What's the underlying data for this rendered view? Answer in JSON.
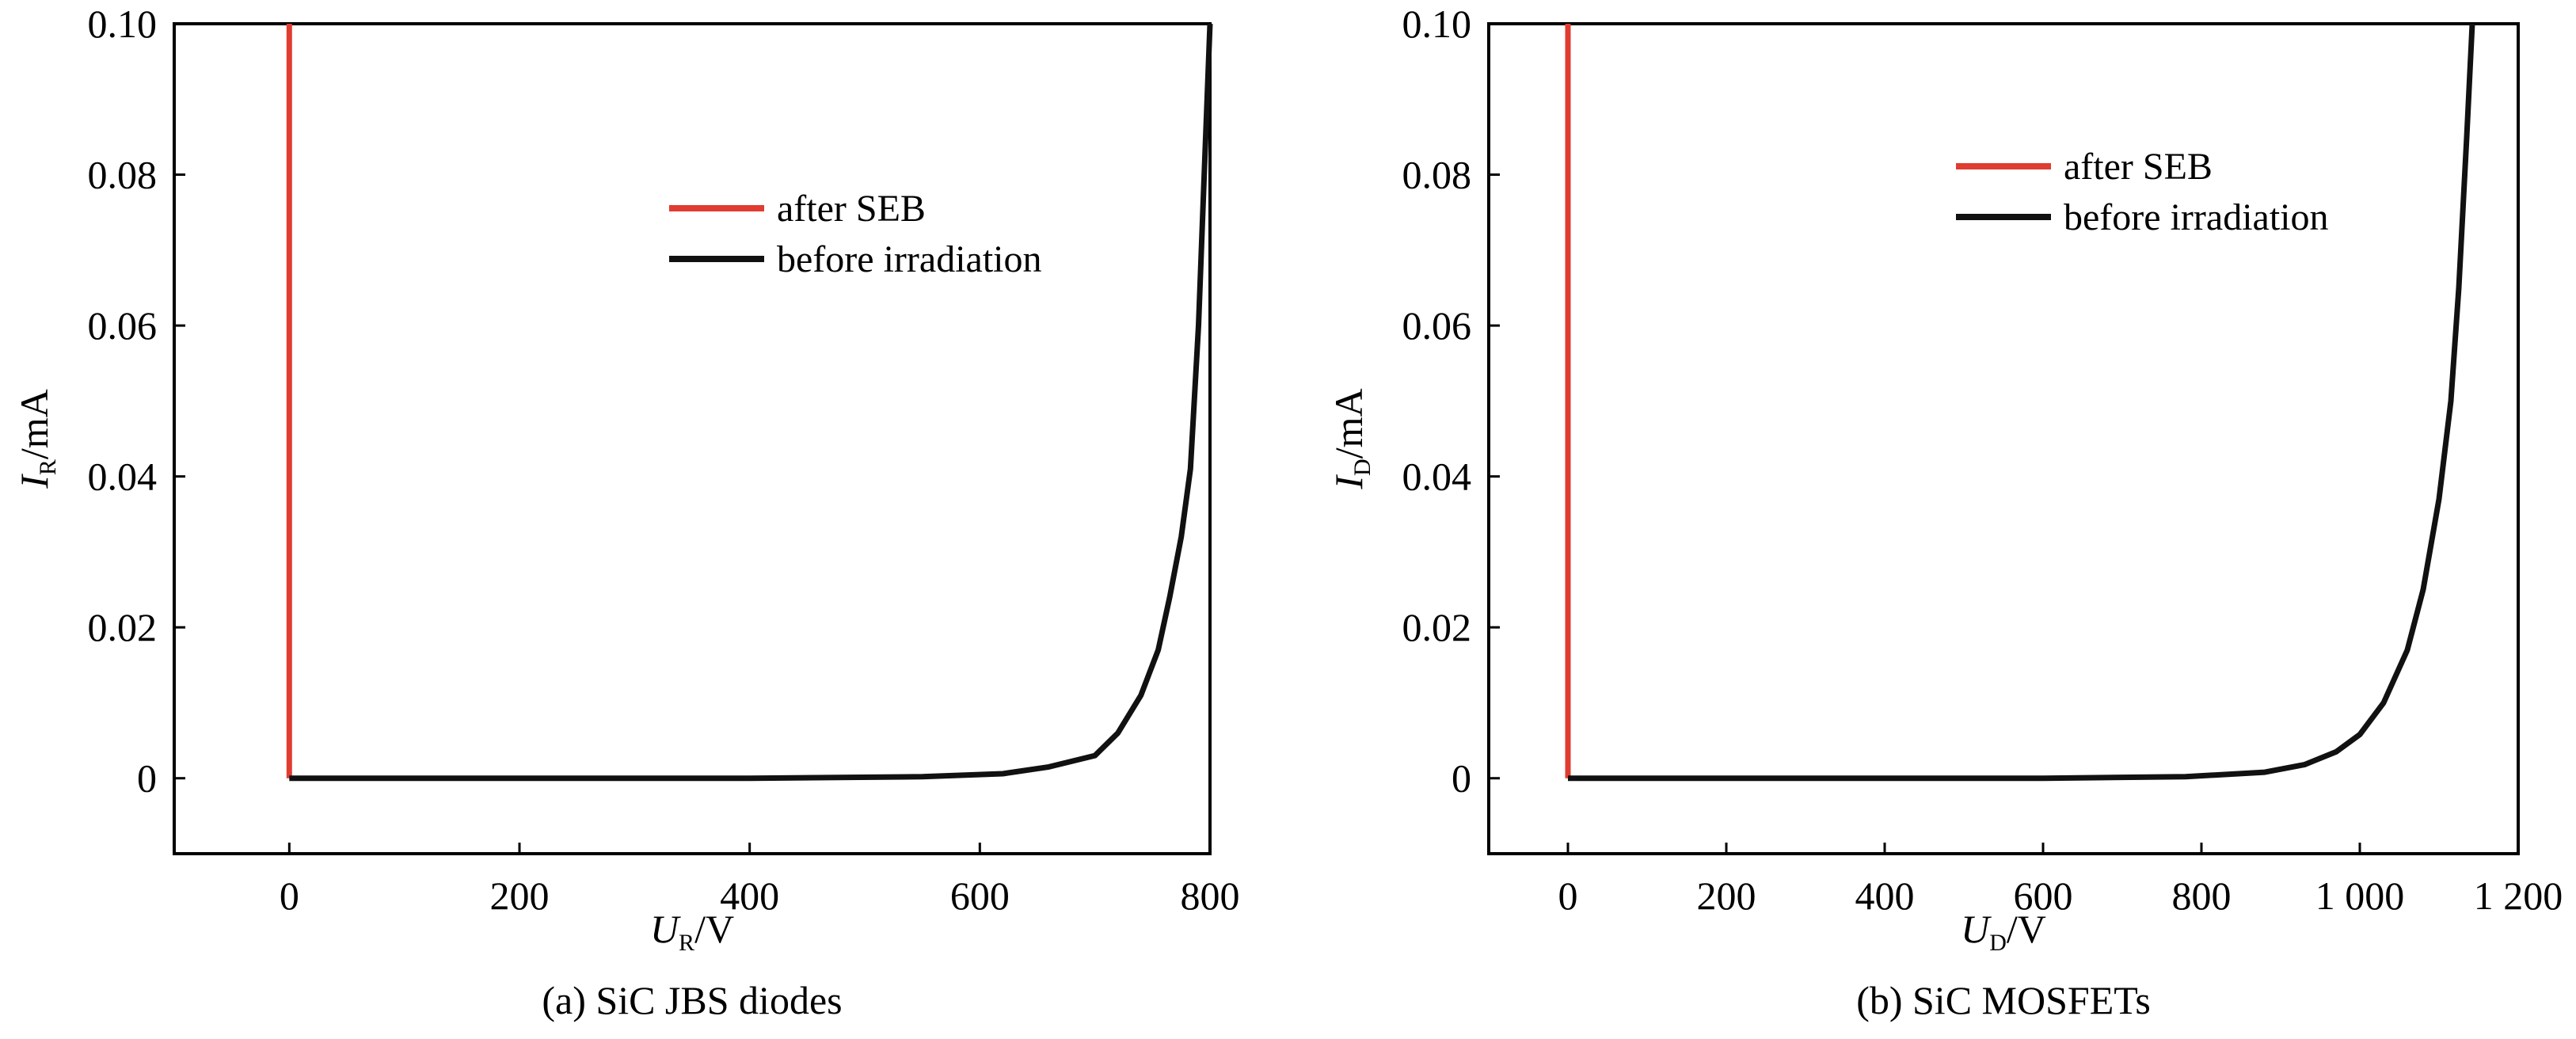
{
  "chart_data": [
    {
      "type": "line",
      "caption": "(a) SiC JBS diodes",
      "xlabel": {
        "main": "U",
        "sub": "R",
        "unit": "/V"
      },
      "ylabel": {
        "main": "I",
        "sub": "R",
        "unit": "/mA"
      },
      "xlim": [
        -100,
        800
      ],
      "ylim": [
        -0.01,
        0.1
      ],
      "xticks": [
        0,
        200,
        400,
        600,
        800
      ],
      "xtick_labels": [
        "0",
        "200",
        "400",
        "600",
        "800"
      ],
      "yticks": [
        0,
        0.02,
        0.04,
        0.06,
        0.08,
        0.1
      ],
      "ytick_labels": [
        "0",
        "0.02",
        "0.04",
        "0.06",
        "0.08",
        "0.10"
      ],
      "legend_position": "upper-center",
      "series": [
        {
          "name": "after SEB",
          "color": "#e03c31",
          "x": [
            0,
            0
          ],
          "y": [
            0,
            0.1
          ]
        },
        {
          "name": "before irradiation",
          "color": "#111111",
          "x": [
            0,
            200,
            400,
            550,
            620,
            660,
            700,
            720,
            740,
            755,
            765,
            775,
            783,
            790,
            795,
            800
          ],
          "y": [
            0,
            0,
            0,
            0.0002,
            0.0006,
            0.0015,
            0.003,
            0.006,
            0.011,
            0.017,
            0.024,
            0.032,
            0.041,
            0.06,
            0.08,
            0.1
          ]
        }
      ]
    },
    {
      "type": "line",
      "caption": "(b) SiC MOSFETs",
      "xlabel": {
        "main": "U",
        "sub": "D",
        "unit": "/V"
      },
      "ylabel": {
        "main": "I",
        "sub": "D",
        "unit": "/mA"
      },
      "xlim": [
        -100,
        1200
      ],
      "ylim": [
        -0.01,
        0.1
      ],
      "xticks": [
        0,
        200,
        400,
        600,
        800,
        1000,
        1200
      ],
      "xtick_labels": [
        "0",
        "200",
        "400",
        "600",
        "800",
        "1 000",
        "1 200"
      ],
      "yticks": [
        0,
        0.02,
        0.04,
        0.06,
        0.08,
        0.1
      ],
      "ytick_labels": [
        "0",
        "0.02",
        "0.04",
        "0.06",
        "0.08",
        "0.10"
      ],
      "legend_position": "upper-right",
      "series": [
        {
          "name": "after SEB",
          "color": "#e03c31",
          "x": [
            0,
            0
          ],
          "y": [
            0,
            0.1
          ]
        },
        {
          "name": "before irradiation",
          "color": "#111111",
          "x": [
            0,
            200,
            400,
            600,
            780,
            880,
            930,
            970,
            1000,
            1030,
            1060,
            1080,
            1100,
            1115,
            1125,
            1135,
            1142
          ],
          "y": [
            0,
            0,
            0,
            0,
            0.0002,
            0.0008,
            0.0018,
            0.0035,
            0.0058,
            0.01,
            0.017,
            0.025,
            0.037,
            0.05,
            0.065,
            0.085,
            0.1
          ]
        }
      ]
    }
  ]
}
